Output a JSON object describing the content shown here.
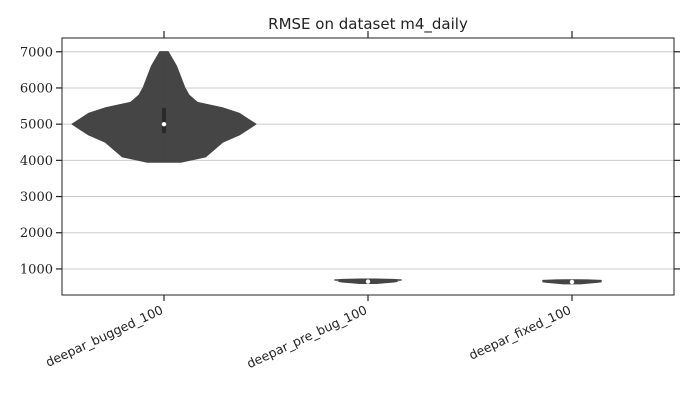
{
  "colors": {
    "violin": "#454545",
    "median": "#ffffff",
    "grid": "#cccccc",
    "axis": "#222222"
  },
  "chart_data": {
    "type": "violin",
    "title": "RMSE on dataset m4_daily",
    "xlabel": "",
    "ylabel": "",
    "categories": [
      "deepar_bugged_100",
      "deepar_pre_bug_100",
      "deepar_fixed_100"
    ],
    "ylim": [
      280,
      7380
    ],
    "yticks": [
      1000,
      2000,
      3000,
      4000,
      5000,
      6000,
      7000
    ],
    "grid": "horizontal",
    "violins": [
      {
        "category": "deepar_bugged_100",
        "median": 5000,
        "min": 3950,
        "max": 7000,
        "q1": 4750,
        "q3": 5450,
        "density": [
          [
            3950,
            2
          ],
          [
            4100,
            5
          ],
          [
            4300,
            6
          ],
          [
            4500,
            7
          ],
          [
            4700,
            9
          ],
          [
            4850,
            10
          ],
          [
            5000,
            11
          ],
          [
            5150,
            10
          ],
          [
            5300,
            9
          ],
          [
            5450,
            7
          ],
          [
            5600,
            4
          ],
          [
            5800,
            3
          ],
          [
            6000,
            2.5
          ],
          [
            6300,
            2
          ],
          [
            6600,
            1.5
          ],
          [
            6800,
            1
          ],
          [
            7000,
            0.5
          ]
        ]
      },
      {
        "category": "deepar_pre_bug_100",
        "median": 650,
        "min": 600,
        "max": 720,
        "q1": 625,
        "q3": 680,
        "density": [
          [
            600,
            1
          ],
          [
            620,
            2
          ],
          [
            640,
            3
          ],
          [
            655,
            3.5
          ],
          [
            675,
            3
          ],
          [
            695,
            4
          ],
          [
            710,
            3
          ],
          [
            720,
            1
          ]
        ]
      },
      {
        "category": "deepar_fixed_100",
        "median": 640,
        "min": 590,
        "max": 700,
        "q1": 615,
        "q3": 665,
        "density": [
          [
            590,
            1
          ],
          [
            610,
            2
          ],
          [
            630,
            3
          ],
          [
            645,
            3.5
          ],
          [
            665,
            3
          ],
          [
            680,
            3.5
          ],
          [
            695,
            2
          ],
          [
            700,
            1
          ]
        ]
      }
    ]
  }
}
